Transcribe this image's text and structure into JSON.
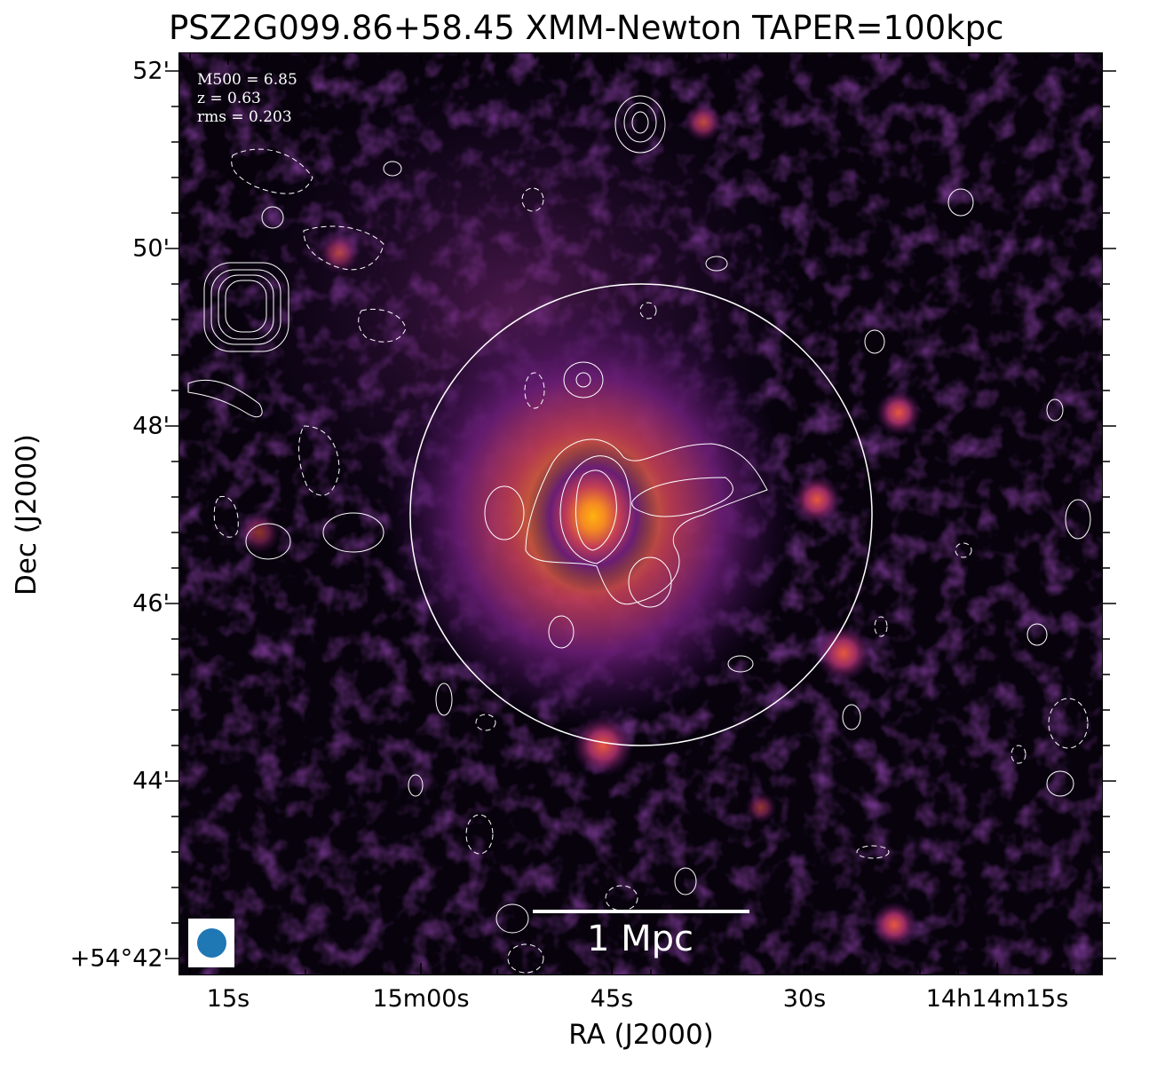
{
  "figure": {
    "title": "PSZ2G099.86+58.45 XMM-Newton TAPER=100kpc",
    "x_axis_label": "RA (J2000)",
    "y_axis_label": "Dec (J2000)",
    "x_tick_labels": [
      "15s",
      "15m00s",
      "45s",
      "30s",
      "14h14m15s"
    ],
    "y_tick_labels": [
      "52'",
      "50'",
      "48'",
      "46'",
      "44'",
      "+54°42'"
    ],
    "annotations": {
      "mass": "M500 = 6.85",
      "redshift": "z = 0.63",
      "rms": "rms = 0.203"
    },
    "scale_bar_label": "1 Mpc",
    "colormap": "inferno-like (black → purple → orange)",
    "contour_color": "#ffffff",
    "beam_color": "#1f77b4"
  }
}
